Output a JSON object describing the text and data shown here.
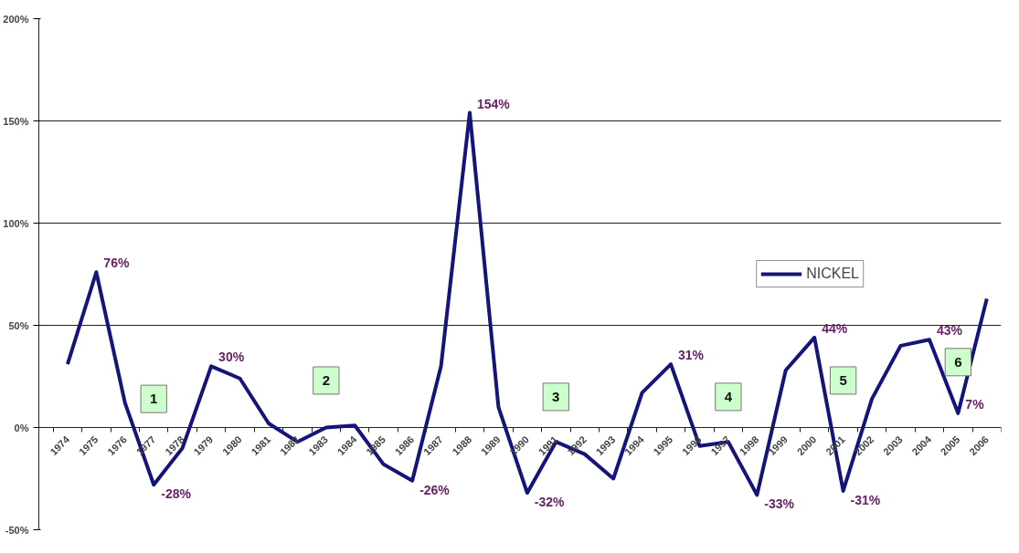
{
  "chart_data": {
    "type": "line",
    "categories": [
      "1974",
      "1975",
      "1976",
      "1977",
      "1978",
      "1979",
      "1980",
      "1981",
      "1982",
      "1983",
      "1984",
      "1985",
      "1986",
      "1987",
      "1988",
      "1989",
      "1990",
      "1991",
      "1992",
      "1993",
      "1994",
      "1995",
      "1996",
      "1997",
      "1998",
      "1999",
      "2000",
      "2001",
      "2002",
      "2003",
      "2004",
      "2005",
      "2006"
    ],
    "series": [
      {
        "name": "NICKEL",
        "color": "#14147a",
        "values": [
          31,
          76,
          12,
          -28,
          -10,
          30,
          24,
          2,
          -7,
          0,
          1,
          -18,
          -26,
          30,
          154,
          10,
          -32,
          -7,
          -13,
          -25,
          17,
          31,
          -9,
          -7,
          -33,
          28,
          44,
          -31,
          14,
          40,
          43,
          7,
          63
        ],
        "value_labels": [
          null,
          "76%",
          null,
          "-28%",
          null,
          "30%",
          null,
          null,
          null,
          null,
          null,
          null,
          "-26%",
          null,
          "154%",
          null,
          "-32%",
          null,
          null,
          null,
          null,
          "31%",
          null,
          null,
          "-33%",
          null,
          "44%",
          "-31%",
          null,
          null,
          "43%",
          "7%",
          null
        ]
      }
    ],
    "ylim": [
      -50,
      200
    ],
    "yticks": [
      {
        "value": -50,
        "label": "-50%"
      },
      {
        "value": 0,
        "label": "0%"
      },
      {
        "value": 50,
        "label": "50%"
      },
      {
        "value": 100,
        "label": "100%"
      },
      {
        "value": 150,
        "label": "150%"
      },
      {
        "value": 200,
        "label": "200%"
      }
    ],
    "grid": "y",
    "legend": "right",
    "marker": "none",
    "line_style": "solid",
    "annotations": [
      {
        "text": "1",
        "x": "1977",
        "y": 14
      },
      {
        "text": "2",
        "x": "1983",
        "y": 23
      },
      {
        "text": "3",
        "x": "1991",
        "y": 15
      },
      {
        "text": "4",
        "x": "1997",
        "y": 15
      },
      {
        "text": "5",
        "x": "2001",
        "y": 23
      },
      {
        "text": "6",
        "x": "2005",
        "y": 32
      }
    ]
  }
}
